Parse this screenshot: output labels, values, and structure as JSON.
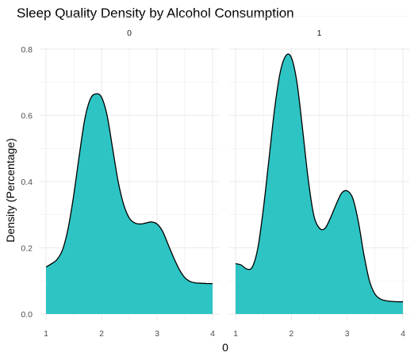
{
  "chart_data": {
    "type": "area",
    "title": "Sleep Quality Density by Alcohol Consumption",
    "xlabel": "0",
    "ylabel": "Density (Percentage)",
    "xlim": [
      1,
      4
    ],
    "ylim": [
      0,
      0.8
    ],
    "x_ticks": [
      "1",
      "2",
      "3",
      "4"
    ],
    "y_ticks": [
      "0.0",
      "0.2",
      "0.4",
      "0.6",
      "0.8"
    ],
    "fill_color": "#2ec4c4",
    "line_color": "#000000",
    "grid_color": "#ebebeb",
    "panels": [
      {
        "facet": "0",
        "x": [
          1.0,
          1.1,
          1.2,
          1.3,
          1.4,
          1.5,
          1.6,
          1.7,
          1.8,
          1.9,
          2.0,
          2.1,
          2.2,
          2.3,
          2.4,
          2.5,
          2.6,
          2.7,
          2.8,
          2.9,
          3.0,
          3.1,
          3.2,
          3.3,
          3.4,
          3.5,
          3.6,
          3.7,
          3.8,
          3.9,
          4.0
        ],
        "y": [
          0.142,
          0.152,
          0.165,
          0.195,
          0.26,
          0.36,
          0.48,
          0.59,
          0.65,
          0.665,
          0.655,
          0.6,
          0.5,
          0.4,
          0.33,
          0.29,
          0.275,
          0.272,
          0.275,
          0.278,
          0.272,
          0.25,
          0.21,
          0.17,
          0.135,
          0.11,
          0.098,
          0.094,
          0.093,
          0.092,
          0.092
        ]
      },
      {
        "facet": "1",
        "x": [
          1.0,
          1.1,
          1.2,
          1.3,
          1.4,
          1.5,
          1.6,
          1.7,
          1.8,
          1.9,
          2.0,
          2.1,
          2.2,
          2.3,
          2.4,
          2.5,
          2.6,
          2.7,
          2.8,
          2.9,
          3.0,
          3.1,
          3.2,
          3.3,
          3.4,
          3.5,
          3.6,
          3.7,
          3.8,
          3.9,
          4.0
        ],
        "y": [
          0.152,
          0.148,
          0.136,
          0.142,
          0.2,
          0.32,
          0.47,
          0.62,
          0.73,
          0.78,
          0.775,
          0.7,
          0.56,
          0.41,
          0.3,
          0.26,
          0.258,
          0.29,
          0.33,
          0.365,
          0.372,
          0.35,
          0.28,
          0.18,
          0.1,
          0.06,
          0.045,
          0.04,
          0.038,
          0.037,
          0.037
        ]
      }
    ]
  }
}
